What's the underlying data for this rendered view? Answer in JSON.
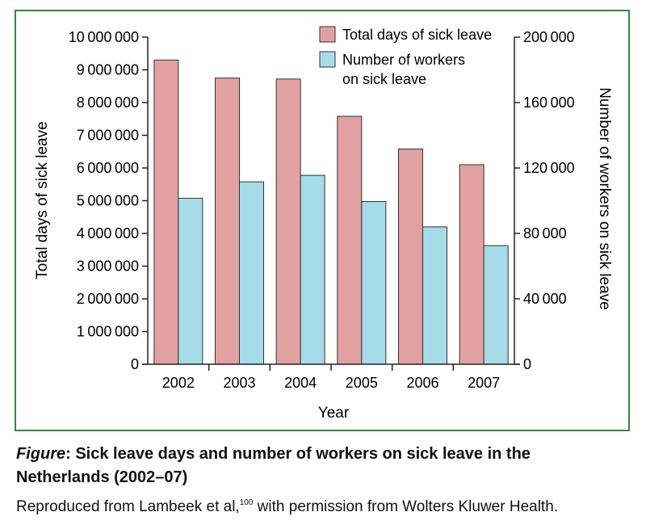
{
  "chart_data": {
    "type": "bar",
    "categories": [
      "2002",
      "2003",
      "2004",
      "2005",
      "2006",
      "2007"
    ],
    "series": [
      {
        "name": "Total days of sick leave",
        "axis": "left",
        "values": [
          9300000,
          8750000,
          8720000,
          7580000,
          6580000,
          6100000
        ],
        "color": "#e2a1a1"
      },
      {
        "name": "Number of workers on sick leave",
        "axis": "right",
        "values": [
          101500,
          111500,
          115500,
          99500,
          84000,
          72500
        ],
        "color": "#a6dbe8"
      }
    ],
    "legend": {
      "position": "top-right",
      "items": [
        [
          "Total days of sick leave"
        ],
        [
          "Number of workers",
          "on sick leave"
        ]
      ]
    },
    "xlabel": "Year",
    "ylabel": "Total days of sick leave",
    "ylabel_right": "Number of workers on sick leave",
    "ylim": [
      0,
      10000000
    ],
    "ylim_right": [
      0,
      200000
    ],
    "yticks": [
      "0",
      "1000000",
      "2000000",
      "3000000",
      "4000000",
      "5000000",
      "6000000",
      "7000000",
      "8000000",
      "9000000",
      "10000000"
    ],
    "yticks_right": [
      "0",
      "40000",
      "80000",
      "120000",
      "160000",
      "200000"
    ],
    "grid": false
  },
  "caption": {
    "figure_label": "Figure",
    "title_line1": ": Sick leave days and number of workers on sick leave in the",
    "title_line2": "Netherlands (2002–07)",
    "credit_pre": "Reproduced from Lambeek et al,",
    "credit_ref": "100",
    "credit_post": " with permission from Wolters Kluwer Health."
  }
}
